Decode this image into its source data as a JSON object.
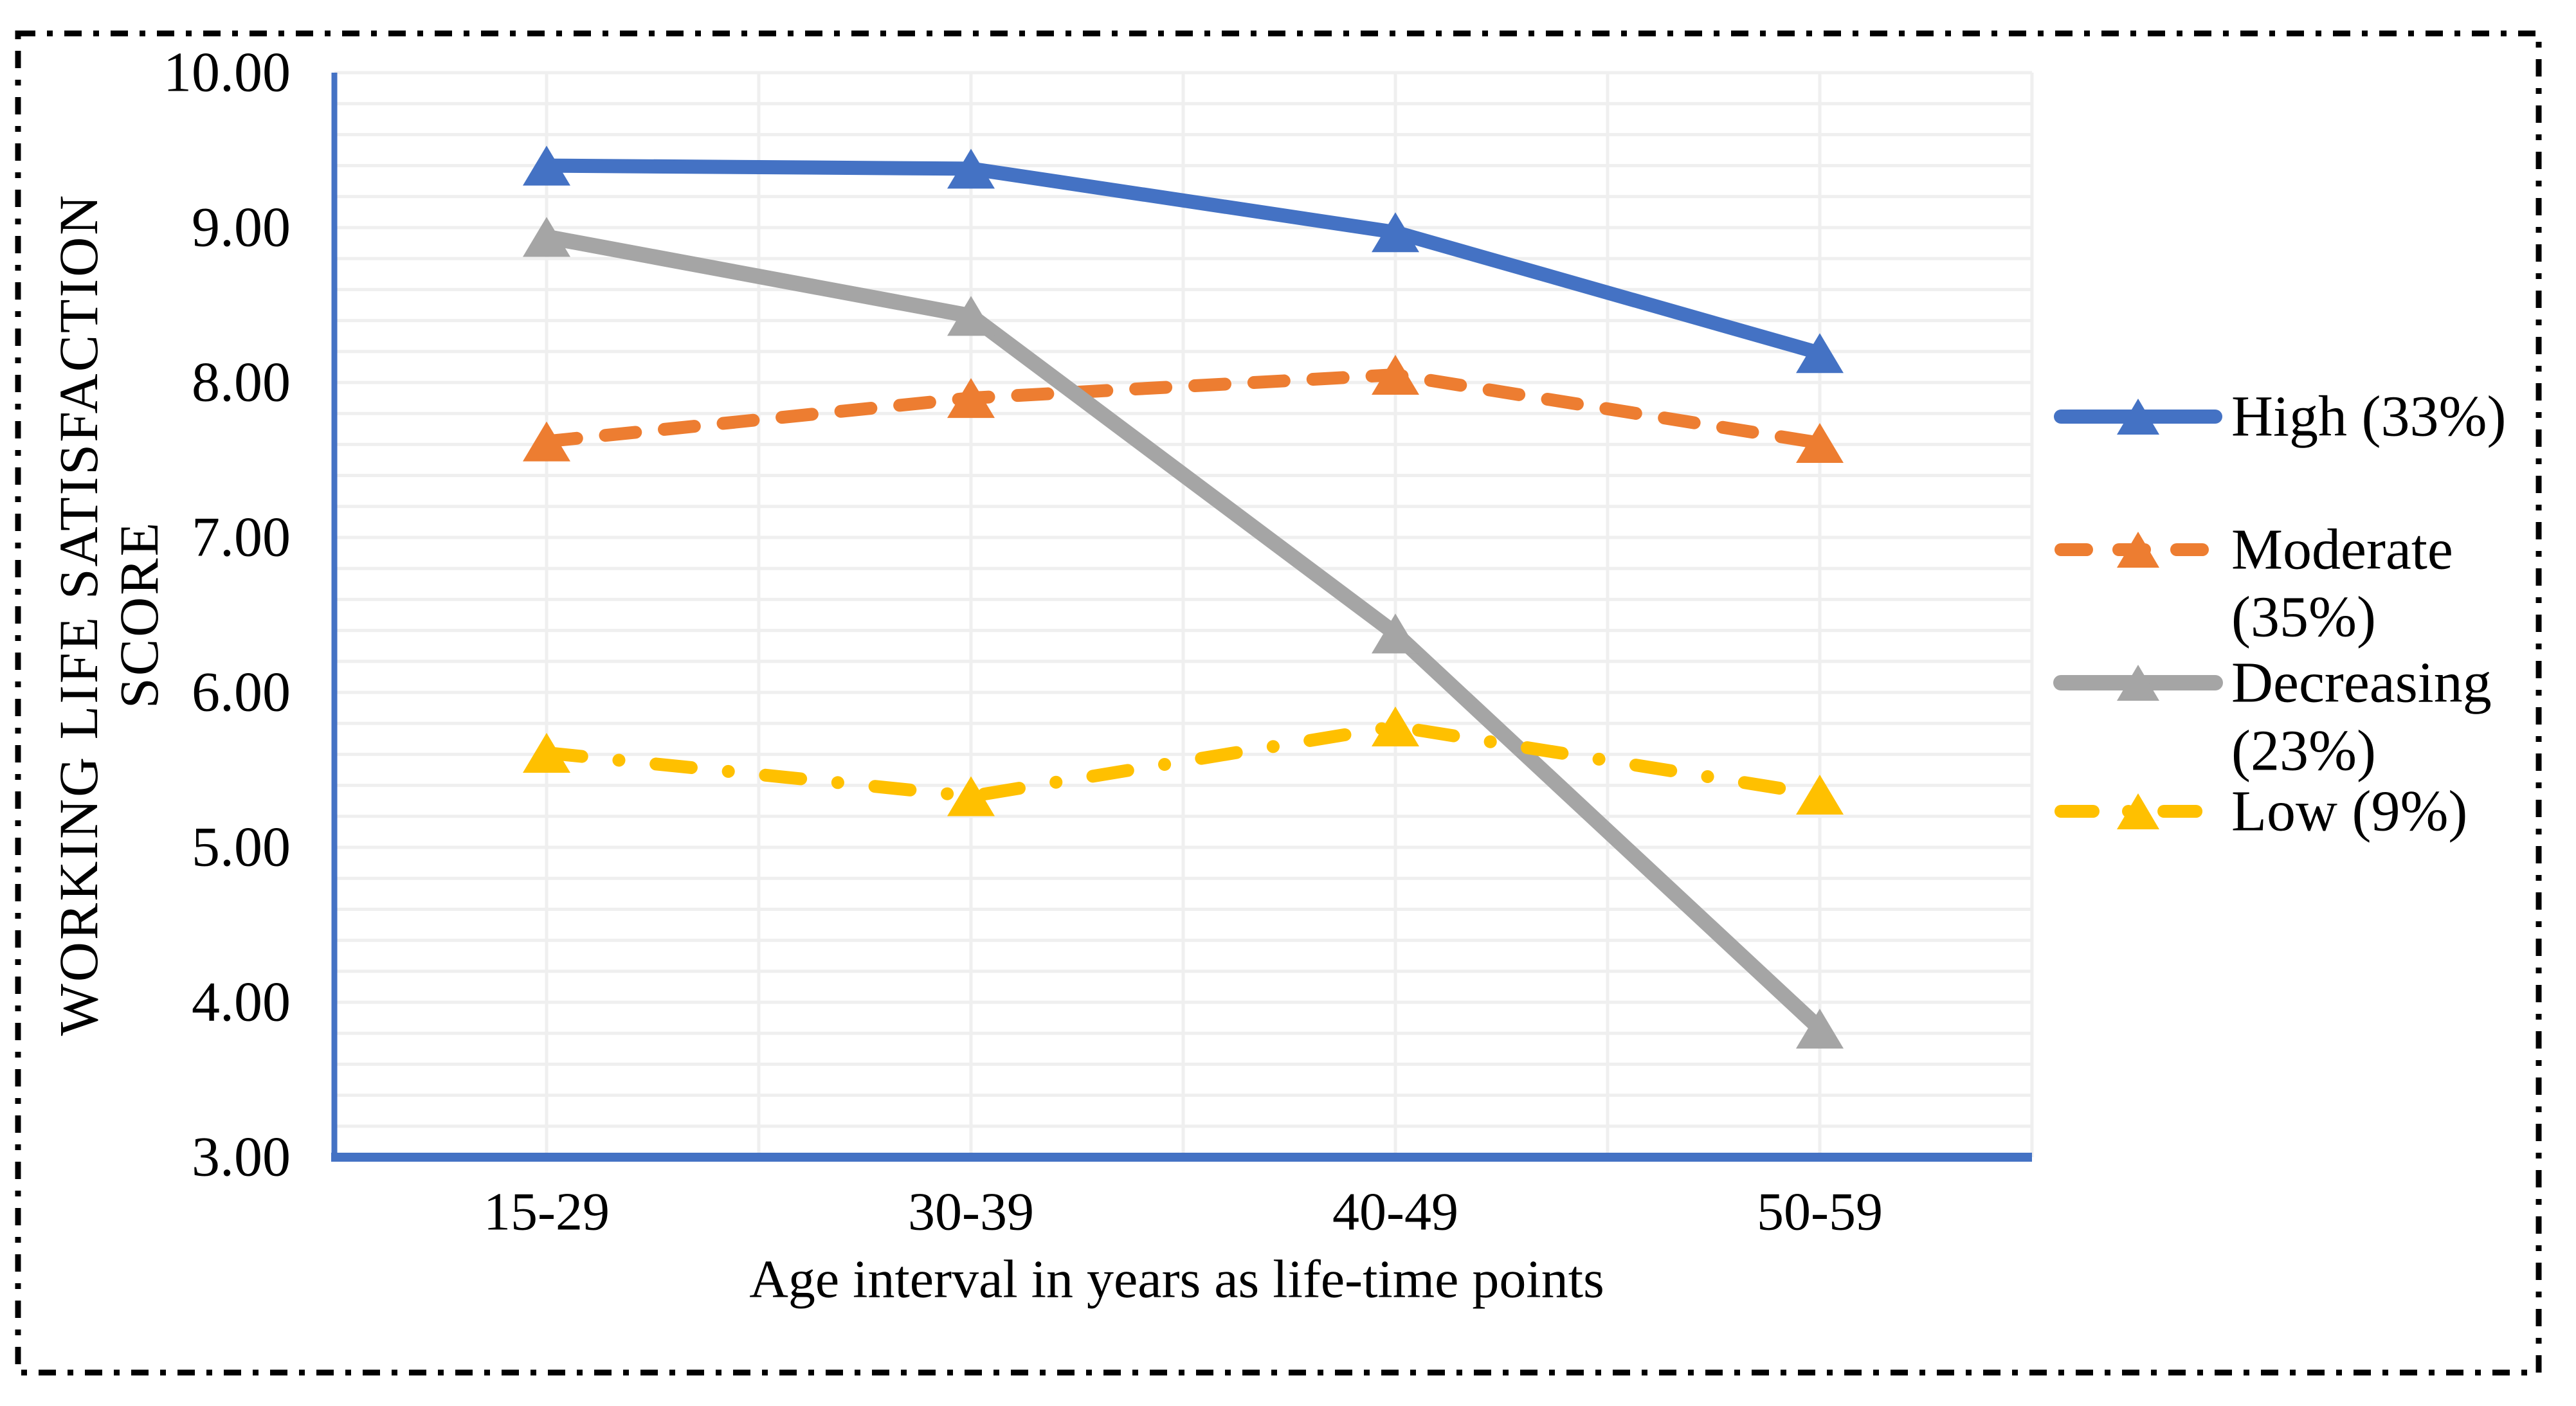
{
  "chart_data": {
    "type": "line",
    "title": "",
    "categories": [
      "15-29",
      "30-39",
      "40-49",
      "50-59"
    ],
    "series": [
      {
        "name": "High (33%)",
        "legend_lines": [
          "High (33%)"
        ],
        "values": [
          9.4,
          9.38,
          8.97,
          8.19
        ],
        "color": "#4472C4",
        "dash": "solid",
        "marker": "triangle"
      },
      {
        "name": "Moderate (35%)",
        "legend_lines": [
          "Moderate",
          "(35%)"
        ],
        "values": [
          7.62,
          7.9,
          8.05,
          7.61
        ],
        "color": "#ED7D31",
        "dash": "dash",
        "marker": "triangle"
      },
      {
        "name": "Decreasing (23%)",
        "legend_lines": [
          "Decreasing",
          "(23%)"
        ],
        "values": [
          8.94,
          8.43,
          6.38,
          3.83
        ],
        "color": "#A5A5A5",
        "dash": "solid",
        "marker": "triangle"
      },
      {
        "name": "Low (9%)",
        "legend_lines": [
          "Low (9%)"
        ],
        "values": [
          5.61,
          5.33,
          5.78,
          5.34
        ],
        "color": "#FFC000",
        "dash": "dashdot",
        "marker": "triangle"
      }
    ],
    "xlabel": "Age interval in years as life-time points",
    "ylabel_lines": [
      "WORKING LIFE SATISFACTION",
      "SCORE"
    ],
    "ylim": [
      3,
      10
    ],
    "ytick_step": 1.0,
    "minor_grid_step": 0.2,
    "yticks": [
      "10.00",
      "9.00",
      "8.00",
      "7.00",
      "6.00",
      "5.00",
      "4.00",
      "3.00"
    ],
    "grid": true,
    "legend_position": "right"
  },
  "style": {
    "background": "#FFFFFF",
    "border_color": "#000000",
    "axis_color": "#4472C4",
    "grid_color": "#EFEFEF",
    "text_color": "#000000"
  }
}
